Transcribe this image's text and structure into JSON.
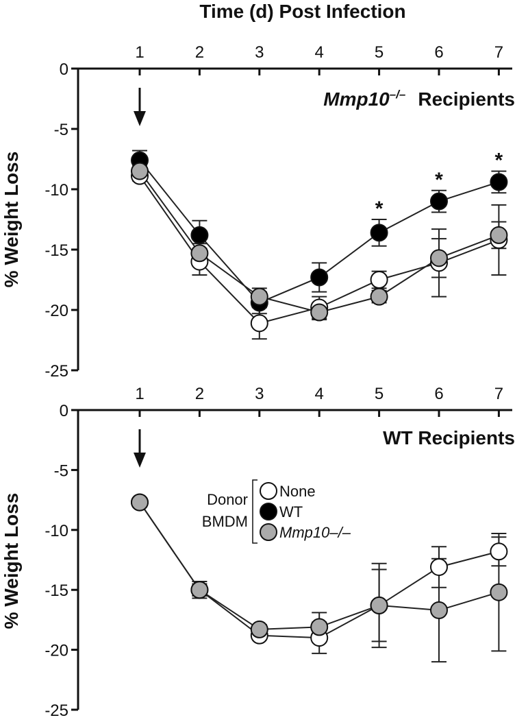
{
  "figure": {
    "x_axis_title": "Time (d) Post Infection",
    "x_ticks": [
      "1",
      "2",
      "3",
      "4",
      "5",
      "6",
      "7"
    ],
    "y_ticks": [
      "0",
      "-5",
      "-10",
      "-15",
      "-20",
      "-25"
    ]
  },
  "legend": {
    "group_label_line1": "Donor",
    "group_label_line2": "BMDM",
    "entries": [
      {
        "label": "None",
        "fill": "#ffffff"
      },
      {
        "label": "WT",
        "fill": "#000000"
      },
      {
        "label": "Mmp10–/–",
        "fill": "#aaaaaa"
      }
    ]
  },
  "chart_data": [
    {
      "type": "line",
      "panel_title_gene": "Mmp10",
      "panel_title_superscript": "–/–",
      "panel_title_rest": "Recipients",
      "xlabel": "Time (d) Post Infection",
      "ylabel": "% Weight Loss",
      "ylim": [
        -25,
        0
      ],
      "x": [
        1,
        2,
        3,
        4,
        5,
        6,
        7
      ],
      "arrow_at_x": 1,
      "significance_marker": "*",
      "significant_x": [
        5,
        6,
        7
      ],
      "series": [
        {
          "name": "None",
          "fill": "#ffffff",
          "values": [
            -8.9,
            -16.0,
            -21.1,
            -19.8,
            -17.5,
            -16.1,
            -14.2
          ],
          "err": [
            0.4,
            1.1,
            1.3,
            0.9,
            0.7,
            2.8,
            2.9
          ]
        },
        {
          "name": "WT",
          "fill": "#000000",
          "values": [
            -7.6,
            -13.8,
            -19.4,
            -17.3,
            -13.6,
            -11.0,
            -9.4
          ],
          "err": [
            0.8,
            1.2,
            0.9,
            1.2,
            1.1,
            0.9,
            0.9
          ]
        },
        {
          "name": "Mmp10–/–",
          "fill": "#aaaaaa",
          "values": [
            -8.5,
            -15.3,
            -18.9,
            -20.2,
            -18.9,
            -15.7,
            -13.8
          ],
          "err": [
            0.5,
            0.8,
            0.7,
            0.6,
            0.5,
            1.6,
            1.1
          ]
        }
      ]
    },
    {
      "type": "line",
      "panel_title": "WT Recipients",
      "xlabel": "Time (d) Post Infection",
      "ylabel": "% Weight Loss",
      "ylim": [
        -25,
        0
      ],
      "x": [
        1,
        2,
        3,
        4,
        5,
        6,
        7
      ],
      "arrow_at_x": 1,
      "series": [
        {
          "name": "None",
          "fill": "#ffffff",
          "values": [
            -7.7,
            -15.0,
            -18.8,
            -19.0,
            -16.3,
            -13.1,
            -11.8
          ],
          "err": [
            0.2,
            0.5,
            0.3,
            1.3,
            3.5,
            1.7,
            1.2
          ]
        },
        {
          "name": "Mmp10–/–",
          "fill": "#aaaaaa",
          "values": [
            -7.7,
            -15.0,
            -18.3,
            -18.1,
            -16.3,
            -16.7,
            -15.2
          ],
          "err": [
            0.2,
            0.7,
            0.4,
            1.2,
            3.0,
            4.3,
            4.9
          ]
        }
      ]
    }
  ]
}
